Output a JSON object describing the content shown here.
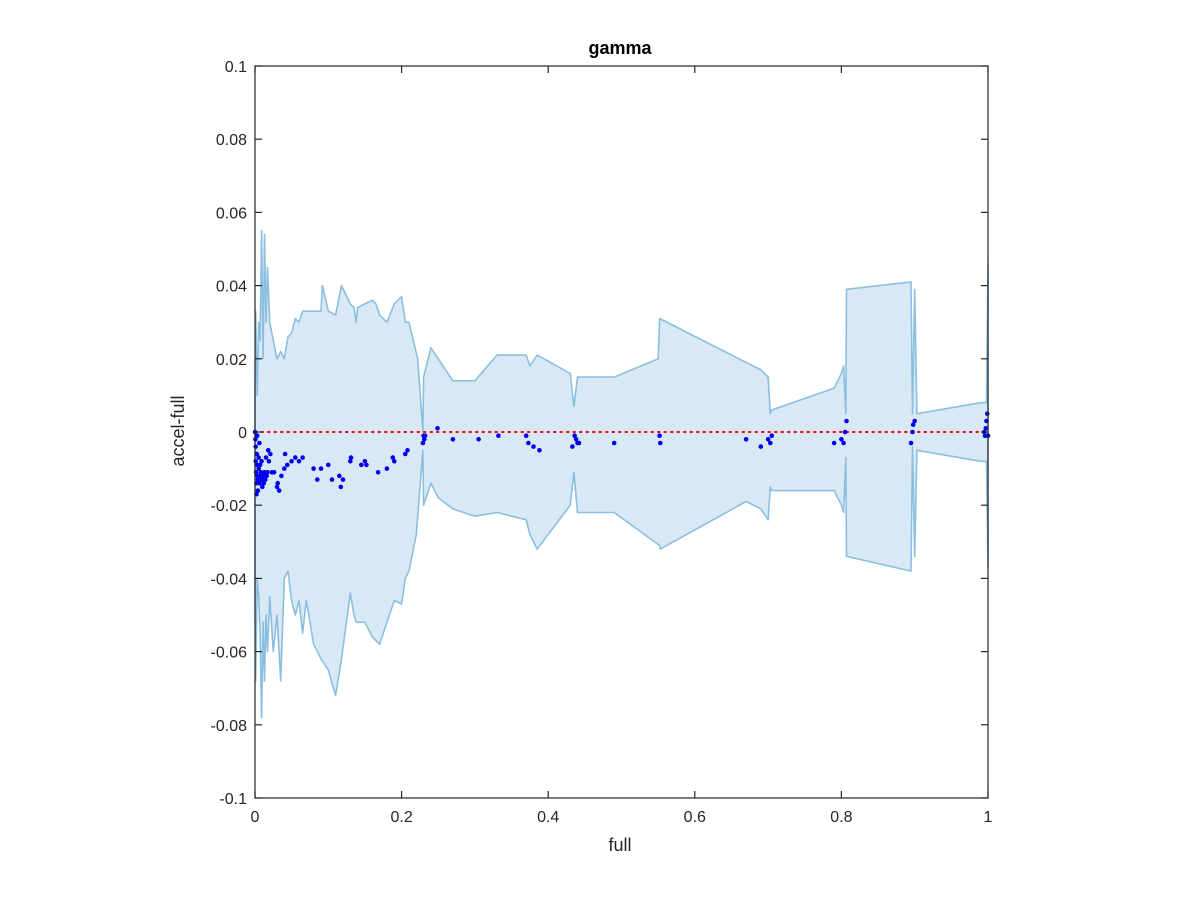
{
  "chart_data": {
    "type": "scatter",
    "title": "gamma",
    "xlabel": "full",
    "ylabel": "accel-full",
    "xlim": [
      0,
      1
    ],
    "ylim": [
      -0.1,
      0.1
    ],
    "xticks": [
      0,
      0.2,
      0.4,
      0.6,
      0.8,
      1
    ],
    "xtick_labels": [
      "0",
      "0.2",
      "0.4",
      "0.6",
      "0.8",
      "1"
    ],
    "yticks": [
      0.1,
      0.08,
      0.06,
      0.04,
      0.02,
      0,
      -0.02,
      -0.04,
      -0.06,
      -0.08,
      -0.1
    ],
    "ytick_labels": [
      "0.1",
      "0.08",
      "0.06",
      "0.04",
      "0.02",
      "0",
      "-0.02",
      "-0.04",
      "-0.06",
      "-0.08",
      "-0.1"
    ],
    "grid": false,
    "reference_line": {
      "y": 0,
      "color": "#ff0000",
      "style": "dotted"
    },
    "colors": {
      "band_fill": "#d9e8f5",
      "band_edge": "#8bbfdf",
      "points": "#0000ee",
      "axis": "#262626"
    },
    "band": {
      "upper": [
        [
          0,
          0.01
        ],
        [
          0.001,
          0.033
        ],
        [
          0.003,
          0.01
        ],
        [
          0.005,
          0.03
        ],
        [
          0.007,
          0.025
        ],
        [
          0.009,
          0.055
        ],
        [
          0.011,
          0.02
        ],
        [
          0.013,
          0.054
        ],
        [
          0.015,
          0.03
        ],
        [
          0.017,
          0.045
        ],
        [
          0.02,
          0.03
        ],
        [
          0.025,
          0.025
        ],
        [
          0.03,
          0.02
        ],
        [
          0.035,
          0.022
        ],
        [
          0.04,
          0.02
        ],
        [
          0.045,
          0.026
        ],
        [
          0.05,
          0.027
        ],
        [
          0.055,
          0.031
        ],
        [
          0.06,
          0.03
        ],
        [
          0.065,
          0.033
        ],
        [
          0.07,
          0.033
        ],
        [
          0.08,
          0.033
        ],
        [
          0.09,
          0.033
        ],
        [
          0.092,
          0.04
        ],
        [
          0.1,
          0.033
        ],
        [
          0.11,
          0.032
        ],
        [
          0.118,
          0.04
        ],
        [
          0.13,
          0.035
        ],
        [
          0.135,
          0.034
        ],
        [
          0.138,
          0.03
        ],
        [
          0.14,
          0.034
        ],
        [
          0.15,
          0.035
        ],
        [
          0.16,
          0.036
        ],
        [
          0.165,
          0.035
        ],
        [
          0.17,
          0.032
        ],
        [
          0.18,
          0.03
        ],
        [
          0.19,
          0.035
        ],
        [
          0.2,
          0.037
        ],
        [
          0.205,
          0.03
        ],
        [
          0.21,
          0.03
        ],
        [
          0.222,
          0.02
        ],
        [
          0.229,
          0.0
        ],
        [
          0.23,
          0.015
        ],
        [
          0.24,
          0.023
        ],
        [
          0.25,
          0.02
        ],
        [
          0.27,
          0.014
        ],
        [
          0.3,
          0.014
        ],
        [
          0.33,
          0.021
        ],
        [
          0.37,
          0.021
        ],
        [
          0.375,
          0.018
        ],
        [
          0.385,
          0.021
        ],
        [
          0.43,
          0.016
        ],
        [
          0.435,
          0.007
        ],
        [
          0.44,
          0.015
        ],
        [
          0.49,
          0.015
        ],
        [
          0.55,
          0.02
        ],
        [
          0.552,
          0.031
        ],
        [
          0.69,
          0.017
        ],
        [
          0.7,
          0.015
        ],
        [
          0.703,
          0.005
        ],
        [
          0.705,
          0.006
        ],
        [
          0.79,
          0.012
        ],
        [
          0.8,
          0.016
        ],
        [
          0.803,
          0.018
        ],
        [
          0.806,
          0.005
        ],
        [
          0.807,
          0.039
        ],
        [
          0.895,
          0.041
        ],
        [
          0.897,
          0.005
        ],
        [
          0.9,
          0.039
        ],
        [
          0.903,
          0.005
        ],
        [
          0.99,
          0.008
        ],
        [
          0.998,
          0.008
        ],
        [
          1.0,
          0.046
        ]
      ],
      "lower": [
        [
          0,
          -0.04
        ],
        [
          0.001,
          -0.068
        ],
        [
          0.003,
          -0.04
        ],
        [
          0.005,
          -0.045
        ],
        [
          0.007,
          -0.055
        ],
        [
          0.009,
          -0.078
        ],
        [
          0.011,
          -0.052
        ],
        [
          0.013,
          -0.068
        ],
        [
          0.015,
          -0.05
        ],
        [
          0.017,
          -0.06
        ],
        [
          0.02,
          -0.045
        ],
        [
          0.025,
          -0.06
        ],
        [
          0.03,
          -0.05
        ],
        [
          0.035,
          -0.068
        ],
        [
          0.04,
          -0.04
        ],
        [
          0.045,
          -0.038
        ],
        [
          0.05,
          -0.046
        ],
        [
          0.055,
          -0.05
        ],
        [
          0.06,
          -0.046
        ],
        [
          0.065,
          -0.055
        ],
        [
          0.07,
          -0.046
        ],
        [
          0.08,
          -0.058
        ],
        [
          0.09,
          -0.062
        ],
        [
          0.1,
          -0.065
        ],
        [
          0.11,
          -0.072
        ],
        [
          0.118,
          -0.062
        ],
        [
          0.13,
          -0.044
        ],
        [
          0.135,
          -0.05
        ],
        [
          0.138,
          -0.052
        ],
        [
          0.15,
          -0.052
        ],
        [
          0.16,
          -0.056
        ],
        [
          0.17,
          -0.058
        ],
        [
          0.18,
          -0.052
        ],
        [
          0.19,
          -0.046
        ],
        [
          0.2,
          -0.047
        ],
        [
          0.205,
          -0.04
        ],
        [
          0.21,
          -0.038
        ],
        [
          0.22,
          -0.028
        ],
        [
          0.229,
          -0.005
        ],
        [
          0.23,
          -0.02
        ],
        [
          0.24,
          -0.014
        ],
        [
          0.25,
          -0.018
        ],
        [
          0.27,
          -0.021
        ],
        [
          0.3,
          -0.023
        ],
        [
          0.33,
          -0.022
        ],
        [
          0.37,
          -0.024
        ],
        [
          0.375,
          -0.028
        ],
        [
          0.385,
          -0.032
        ],
        [
          0.43,
          -0.02
        ],
        [
          0.435,
          -0.011
        ],
        [
          0.44,
          -0.022
        ],
        [
          0.49,
          -0.022
        ],
        [
          0.552,
          -0.031
        ],
        [
          0.553,
          -0.032
        ],
        [
          0.67,
          -0.019
        ],
        [
          0.69,
          -0.021
        ],
        [
          0.7,
          -0.024
        ],
        [
          0.703,
          -0.015
        ],
        [
          0.705,
          -0.016
        ],
        [
          0.79,
          -0.016
        ],
        [
          0.8,
          -0.02
        ],
        [
          0.803,
          -0.022
        ],
        [
          0.806,
          -0.007
        ],
        [
          0.807,
          -0.034
        ],
        [
          0.895,
          -0.038
        ],
        [
          0.897,
          -0.004
        ],
        [
          0.9,
          -0.034
        ],
        [
          0.903,
          -0.005
        ],
        [
          0.99,
          -0.008
        ],
        [
          0.998,
          -0.008
        ],
        [
          1.0,
          -0.037
        ]
      ]
    },
    "points": [
      [
        0.0,
        0.0
      ],
      [
        0.0005,
        -0.002
      ],
      [
        0.001,
        -0.004
      ],
      [
        0.001,
        -0.008
      ],
      [
        0.0015,
        -0.011
      ],
      [
        0.002,
        -0.014
      ],
      [
        0.002,
        -0.017
      ],
      [
        0.0025,
        -0.006
      ],
      [
        0.003,
        -0.001
      ],
      [
        0.003,
        -0.009
      ],
      [
        0.0035,
        -0.012
      ],
      [
        0.004,
        -0.016
      ],
      [
        0.004,
        -0.013
      ],
      [
        0.005,
        -0.01
      ],
      [
        0.005,
        -0.007
      ],
      [
        0.006,
        -0.014
      ],
      [
        0.006,
        -0.003
      ],
      [
        0.007,
        -0.012
      ],
      [
        0.007,
        -0.009
      ],
      [
        0.008,
        -0.011
      ],
      [
        0.009,
        -0.013
      ],
      [
        0.009,
        -0.008
      ],
      [
        0.01,
        -0.015
      ],
      [
        0.011,
        -0.012
      ],
      [
        0.012,
        -0.014
      ],
      [
        0.013,
        -0.011
      ],
      [
        0.014,
        -0.013
      ],
      [
        0.015,
        -0.007
      ],
      [
        0.016,
        -0.012
      ],
      [
        0.017,
        -0.011
      ],
      [
        0.018,
        -0.005
      ],
      [
        0.019,
        -0.008
      ],
      [
        0.021,
        -0.006
      ],
      [
        0.023,
        -0.011
      ],
      [
        0.026,
        -0.011
      ],
      [
        0.03,
        -0.015
      ],
      [
        0.031,
        -0.014
      ],
      [
        0.033,
        -0.016
      ],
      [
        0.036,
        -0.012
      ],
      [
        0.04,
        -0.01
      ],
      [
        0.041,
        -0.006
      ],
      [
        0.044,
        -0.009
      ],
      [
        0.05,
        -0.008
      ],
      [
        0.055,
        -0.007
      ],
      [
        0.06,
        -0.008
      ],
      [
        0.065,
        -0.007
      ],
      [
        0.08,
        -0.01
      ],
      [
        0.085,
        -0.013
      ],
      [
        0.09,
        -0.01
      ],
      [
        0.1,
        -0.009
      ],
      [
        0.105,
        -0.013
      ],
      [
        0.115,
        -0.012
      ],
      [
        0.117,
        -0.015
      ],
      [
        0.12,
        -0.013
      ],
      [
        0.13,
        -0.008
      ],
      [
        0.131,
        -0.007
      ],
      [
        0.145,
        -0.009
      ],
      [
        0.15,
        -0.008
      ],
      [
        0.152,
        -0.009
      ],
      [
        0.168,
        -0.011
      ],
      [
        0.18,
        -0.01
      ],
      [
        0.188,
        -0.007
      ],
      [
        0.19,
        -0.008
      ],
      [
        0.205,
        -0.006
      ],
      [
        0.208,
        -0.005
      ],
      [
        0.229,
        -0.003
      ],
      [
        0.23,
        -0.001
      ],
      [
        0.231,
        -0.002
      ],
      [
        0.232,
        -0.001
      ],
      [
        0.249,
        0.001
      ],
      [
        0.27,
        -0.002
      ],
      [
        0.305,
        -0.002
      ],
      [
        0.332,
        -0.001
      ],
      [
        0.37,
        -0.001
      ],
      [
        0.373,
        -0.003
      ],
      [
        0.38,
        -0.004
      ],
      [
        0.388,
        -0.005
      ],
      [
        0.433,
        -0.004
      ],
      [
        0.436,
        -0.001
      ],
      [
        0.438,
        -0.002
      ],
      [
        0.44,
        -0.003
      ],
      [
        0.442,
        -0.003
      ],
      [
        0.49,
        -0.003
      ],
      [
        0.552,
        -0.001
      ],
      [
        0.553,
        -0.003
      ],
      [
        0.67,
        -0.002
      ],
      [
        0.69,
        -0.004
      ],
      [
        0.7,
        -0.002
      ],
      [
        0.703,
        -0.003
      ],
      [
        0.705,
        -0.001
      ],
      [
        0.79,
        -0.003
      ],
      [
        0.8,
        -0.002
      ],
      [
        0.803,
        -0.003
      ],
      [
        0.805,
        0.0
      ],
      [
        0.807,
        0.003
      ],
      [
        0.895,
        -0.003
      ],
      [
        0.897,
        0.0
      ],
      [
        0.898,
        0.002
      ],
      [
        0.9,
        0.003
      ],
      [
        0.995,
        0.0
      ],
      [
        0.996,
        -0.001
      ],
      [
        0.997,
        0.001
      ],
      [
        0.998,
        0.003
      ],
      [
        0.999,
        0.005
      ],
      [
        1.0,
        -0.001
      ]
    ]
  }
}
